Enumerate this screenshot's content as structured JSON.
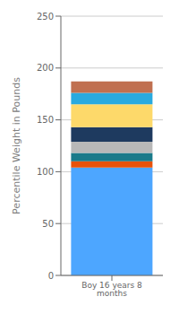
{
  "chart_data": {
    "type": "bar",
    "stacked": true,
    "categories": [
      "Boy 16 years 8 months"
    ],
    "ylabel": "Percentile Weight in Pounds",
    "series": [
      {
        "color": "#4da6ff",
        "values": [
          104
        ]
      },
      {
        "color": "#e8520a",
        "values": [
          6
        ]
      },
      {
        "color": "#1a7a8a",
        "values": [
          8
        ]
      },
      {
        "color": "#b8b8b8",
        "values": [
          11
        ]
      },
      {
        "color": "#1e3a5f",
        "values": [
          14
        ]
      },
      {
        "color": "#fdd96a",
        "values": [
          22
        ]
      },
      {
        "color": "#29aadf",
        "values": [
          11
        ]
      },
      {
        "color": "#c07050",
        "values": [
          11
        ]
      }
    ],
    "ylim": [
      0,
      250
    ],
    "yticks": [
      0,
      50,
      100,
      150,
      200,
      250
    ],
    "grid": true
  }
}
